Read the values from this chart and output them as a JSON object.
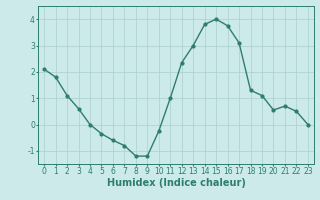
{
  "x": [
    0,
    1,
    2,
    3,
    4,
    5,
    6,
    7,
    8,
    9,
    10,
    11,
    12,
    13,
    14,
    15,
    16,
    17,
    18,
    19,
    20,
    21,
    22,
    23
  ],
  "y": [
    2.1,
    1.8,
    1.1,
    0.6,
    0.0,
    -0.35,
    -0.6,
    -0.8,
    -1.2,
    -1.2,
    -0.25,
    1.0,
    2.35,
    3.0,
    3.8,
    4.0,
    3.75,
    3.1,
    1.3,
    1.1,
    0.55,
    0.7,
    0.5,
    0.0
  ],
  "xlabel": "Humidex (Indice chaleur)",
  "xlim": [
    -0.5,
    23.5
  ],
  "ylim": [
    -1.5,
    4.5
  ],
  "yticks": [
    -1,
    0,
    1,
    2,
    3,
    4
  ],
  "xticks": [
    0,
    1,
    2,
    3,
    4,
    5,
    6,
    7,
    8,
    9,
    10,
    11,
    12,
    13,
    14,
    15,
    16,
    17,
    18,
    19,
    20,
    21,
    22,
    23
  ],
  "line_color": "#2e7d6e",
  "marker_size": 2.0,
  "bg_color": "#cceaea",
  "grid_color": "#aacece",
  "tick_label_fontsize": 5.5,
  "xlabel_fontsize": 7.0,
  "line_width": 1.0
}
